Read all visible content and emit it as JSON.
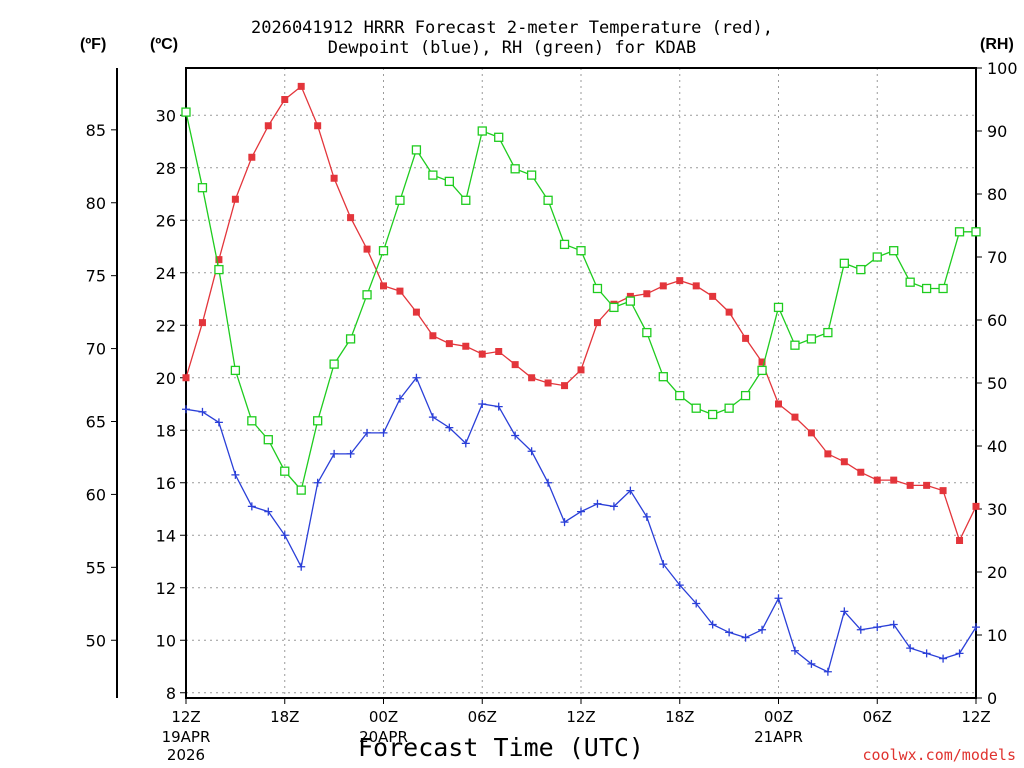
{
  "chart_data": {
    "type": "line",
    "title_line1": "2026041912 HRRR Forecast 2-meter Temperature (red),",
    "title_line2": "Dewpoint (blue), RH (green) for KDAB",
    "xlabel": "Forecast Time (UTC)",
    "credit": "coolwx.com/models",
    "unit_left_f": "(ºF)",
    "unit_left_c": "(ºC)",
    "unit_right": "(RH)",
    "x_hours": [
      0,
      1,
      2,
      3,
      4,
      5,
      6,
      7,
      8,
      9,
      10,
      11,
      12,
      13,
      14,
      15,
      16,
      17,
      18,
      19,
      20,
      21,
      22,
      23,
      24,
      25,
      26,
      27,
      28,
      29,
      30,
      31,
      32,
      33,
      34,
      35,
      36,
      37,
      38,
      39,
      40,
      41,
      42,
      43,
      44,
      45,
      46,
      47,
      48
    ],
    "xlim": [
      0,
      48
    ],
    "x_ticks": [
      {
        "hour": 0,
        "label": "12Z",
        "sub1": "19APR",
        "sub2": "2026"
      },
      {
        "hour": 6,
        "label": "18Z",
        "sub1": "",
        "sub2": ""
      },
      {
        "hour": 12,
        "label": "00Z",
        "sub1": "20APR",
        "sub2": ""
      },
      {
        "hour": 18,
        "label": "06Z",
        "sub1": "",
        "sub2": ""
      },
      {
        "hour": 24,
        "label": "12Z",
        "sub1": "",
        "sub2": ""
      },
      {
        "hour": 30,
        "label": "18Z",
        "sub1": "",
        "sub2": ""
      },
      {
        "hour": 36,
        "label": "00Z",
        "sub1": "21APR",
        "sub2": ""
      },
      {
        "hour": 42,
        "label": "06Z",
        "sub1": "",
        "sub2": ""
      },
      {
        "hour": 48,
        "label": "12Z",
        "sub1": "",
        "sub2": ""
      }
    ],
    "ylim_c": [
      7.8,
      31.8
    ],
    "yticks_c": [
      8,
      10,
      12,
      14,
      16,
      18,
      20,
      22,
      24,
      26,
      28,
      30
    ],
    "yticks_f": [
      50,
      55,
      60,
      65,
      70,
      75,
      80,
      85
    ],
    "ylim_rh": [
      0,
      100
    ],
    "yticks_rh": [
      0,
      10,
      20,
      30,
      40,
      50,
      60,
      70,
      80,
      90,
      100
    ],
    "grid": true,
    "colors": {
      "temperature": "#e3353b",
      "dewpoint": "#2a3fd8",
      "rh": "#1fcc1f",
      "grid": "#9a9a9a"
    },
    "series": [
      {
        "name": "Temperature",
        "unit": "C",
        "marker": "filled-square",
        "values": [
          20.0,
          22.1,
          24.5,
          26.8,
          28.4,
          29.6,
          30.6,
          31.1,
          29.6,
          27.6,
          26.1,
          24.9,
          23.5,
          23.3,
          22.5,
          21.6,
          21.3,
          21.2,
          20.9,
          21.0,
          20.5,
          20.0,
          19.8,
          19.7,
          20.3,
          22.1,
          22.8,
          23.1,
          23.2,
          23.5,
          23.7,
          23.5,
          23.1,
          22.5,
          21.5,
          20.6,
          19.0,
          18.5,
          17.9,
          17.1,
          16.8,
          16.4,
          16.1,
          16.1,
          15.9,
          15.9,
          15.7,
          13.8,
          15.1
        ]
      },
      {
        "name": "Dewpoint",
        "unit": "C",
        "marker": "plus",
        "values": [
          18.8,
          18.7,
          18.3,
          16.3,
          15.1,
          14.9,
          14.0,
          12.8,
          16.0,
          17.1,
          17.1,
          17.9,
          17.9,
          19.2,
          20.0,
          18.5,
          18.1,
          17.5,
          19.0,
          18.9,
          17.8,
          17.2,
          16.0,
          14.5,
          14.9,
          15.2,
          15.1,
          15.7,
          14.7,
          12.9,
          12.1,
          11.4,
          10.6,
          10.3,
          10.1,
          10.4,
          11.6,
          9.6,
          9.1,
          8.8,
          11.1,
          10.4,
          10.5,
          10.6,
          9.7,
          9.5,
          9.3,
          9.5,
          10.5
        ]
      },
      {
        "name": "RH",
        "unit": "%",
        "marker": "open-square",
        "values": [
          93,
          81,
          68,
          52,
          44,
          41,
          36,
          33,
          44,
          53,
          57,
          64,
          71,
          79,
          87,
          83,
          82,
          79,
          90,
          89,
          84,
          83,
          79,
          72,
          71,
          65,
          62,
          63,
          58,
          51,
          48,
          46,
          45,
          46,
          48,
          52,
          62,
          56,
          57,
          58,
          69,
          68,
          70,
          71,
          66,
          65,
          65,
          74,
          74
        ]
      }
    ]
  }
}
